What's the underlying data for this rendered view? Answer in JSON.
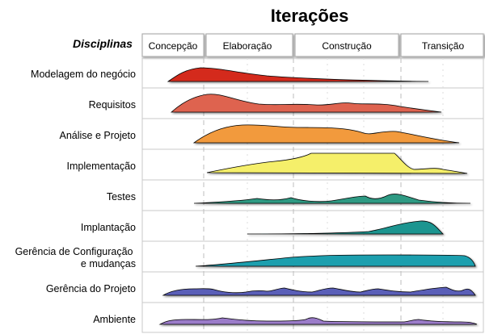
{
  "title": "Iterações",
  "disciplines_header": "Disciplinas",
  "phases": [
    {
      "label": "Concepção"
    },
    {
      "label": "Elaboração"
    },
    {
      "label": "Construção"
    },
    {
      "label": "Transição"
    }
  ],
  "disciplines": [
    {
      "label": [
        "Modelagem do negócio"
      ],
      "color": "#d42a1e"
    },
    {
      "label": [
        "Requisitos"
      ],
      "color": "#de6350"
    },
    {
      "label": [
        "Análise e Projeto"
      ],
      "color": "#f29a3c"
    },
    {
      "label": [
        "Implementação"
      ],
      "color": "#f5ef6a"
    },
    {
      "label": [
        "Testes"
      ],
      "color": "#2f9a83"
    },
    {
      "label": [
        "Implantação"
      ],
      "color": "#1f9590"
    },
    {
      "label": [
        "Gerência de Configuração",
        "e mudanças"
      ],
      "color": "#1f9fae"
    },
    {
      "label": [
        "Gerência do Projeto"
      ],
      "color": "#5a5fb8"
    },
    {
      "label": [
        "Ambiente"
      ],
      "color": "#9b7cc9"
    }
  ],
  "colors": {
    "grid": "#c8c8c8",
    "header_border": "#b0b0b0",
    "phase_divider": "#bdbdbd",
    "curve_outline": "#000000"
  }
}
